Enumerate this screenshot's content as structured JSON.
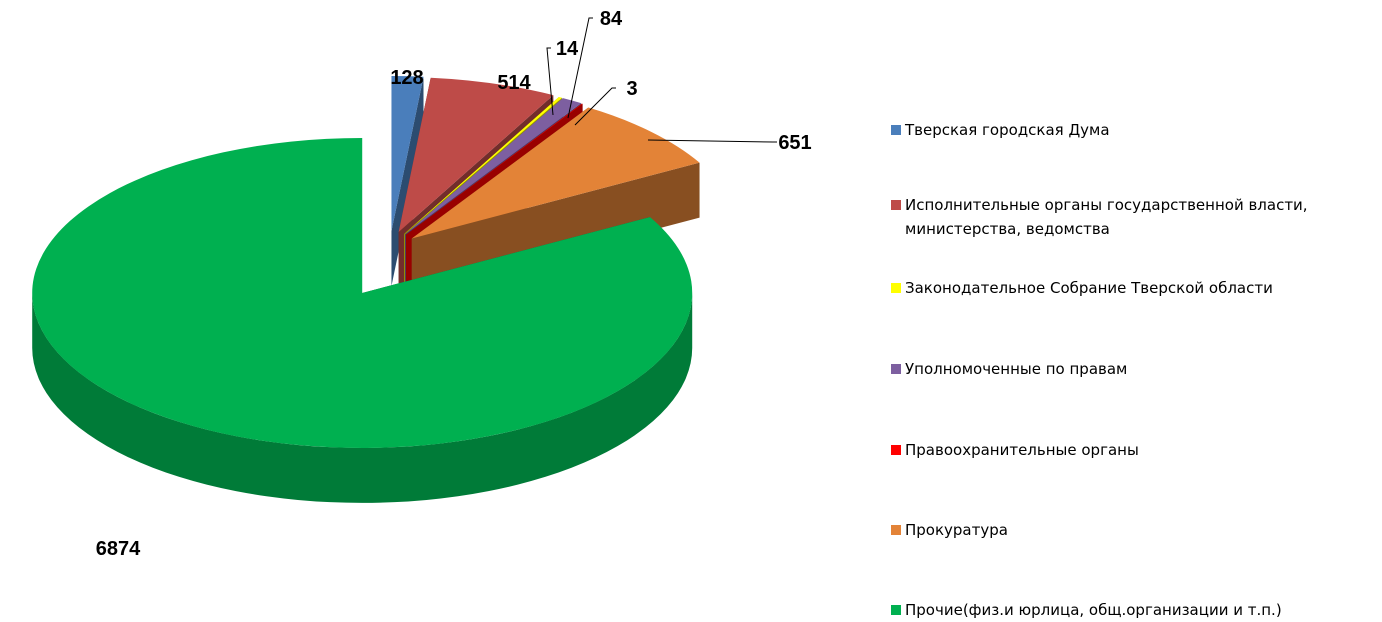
{
  "chart_data": {
    "type": "pie",
    "categories": [
      "Тверская городская Дума",
      "Исполнительные органы государственной власти, министерства, ведомства",
      "Законодательное Собрание Тверской области",
      "Уполномоченные по правам",
      "Правоохранительные органы",
      "Прокуратура",
      "Прочие(физ.и юрлица, общ.организации и т.п.)"
    ],
    "values": [
      128,
      514,
      14,
      84,
      3,
      651,
      6874
    ],
    "colors": [
      "#4a7ebb",
      "#be4b48",
      "#ffff00",
      "#7d5fa0",
      "#ff0000",
      "#e38337",
      "#00b050"
    ],
    "legend": "right"
  }
}
